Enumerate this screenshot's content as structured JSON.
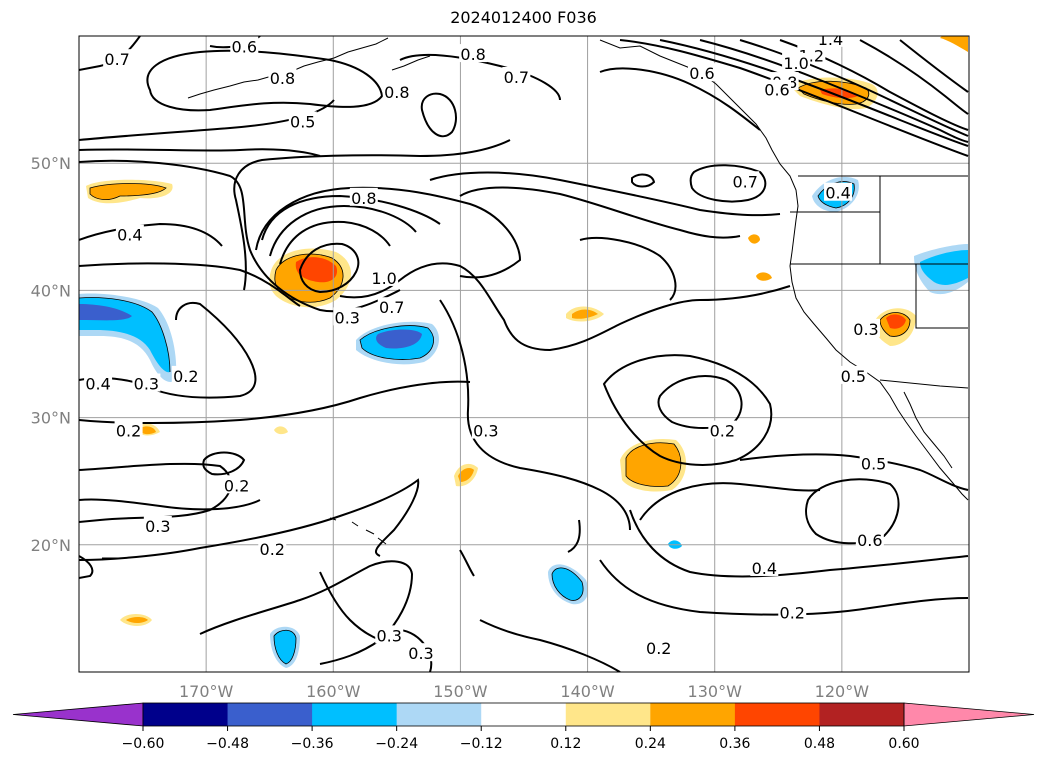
{
  "title": "2024012400 F036",
  "map": {
    "lat_labels": [
      "50°N",
      "40°N",
      "30°N",
      "20°N"
    ],
    "lat_values": [
      50,
      40,
      30,
      20
    ],
    "lon_labels": [
      "170°W",
      "160°W",
      "150°W",
      "140°W",
      "130°W",
      "120°W"
    ],
    "lon_values": [
      -170,
      -160,
      -150,
      -140,
      -130,
      -120
    ],
    "extent": {
      "lon": [
        -180,
        -110
      ],
      "lat": [
        10,
        60
      ]
    },
    "grid": true,
    "contour_labels": [
      {
        "text": "0.7",
        "lon": -177.0,
        "lat": 58.1
      },
      {
        "text": "0.6",
        "lon": -167.0,
        "lat": 59.1
      },
      {
        "text": "0.8",
        "lon": -164.0,
        "lat": 56.6
      },
      {
        "text": "0.8",
        "lon": -149.0,
        "lat": 58.5
      },
      {
        "text": "0.8",
        "lon": -155.0,
        "lat": 55.5
      },
      {
        "text": "0.7",
        "lon": -145.6,
        "lat": 56.7
      },
      {
        "text": "0.6",
        "lon": -131.0,
        "lat": 57.0
      },
      {
        "text": "0.5",
        "lon": -162.4,
        "lat": 53.2
      },
      {
        "text": "1.4",
        "lon": -120.9,
        "lat": 59.7
      },
      {
        "text": "1.2",
        "lon": -122.4,
        "lat": 58.4
      },
      {
        "text": "1.0",
        "lon": -123.6,
        "lat": 57.8
      },
      {
        "text": "0.8",
        "lon": -124.5,
        "lat": 56.3
      },
      {
        "text": "0.6",
        "lon": -125.1,
        "lat": 55.7
      },
      {
        "text": "0.7",
        "lon": -127.6,
        "lat": 48.5
      },
      {
        "text": "0.4",
        "lon": -120.3,
        "lat": 47.6
      },
      {
        "text": "0.4",
        "lon": -176.0,
        "lat": 44.3
      },
      {
        "text": "0.8",
        "lon": -157.6,
        "lat": 47.2
      },
      {
        "text": "1.0",
        "lon": -156.0,
        "lat": 40.9
      },
      {
        "text": "0.7",
        "lon": -155.4,
        "lat": 38.6
      },
      {
        "text": "0.3",
        "lon": -158.9,
        "lat": 37.8
      },
      {
        "text": "0.4",
        "lon": -178.5,
        "lat": 32.6
      },
      {
        "text": "0.3",
        "lon": -174.7,
        "lat": 32.6
      },
      {
        "text": "0.2",
        "lon": -171.6,
        "lat": 33.2
      },
      {
        "text": "0.2",
        "lon": -176.1,
        "lat": 28.9
      },
      {
        "text": "0.2",
        "lon": -167.6,
        "lat": 24.6
      },
      {
        "text": "0.3",
        "lon": -173.8,
        "lat": 21.4
      },
      {
        "text": "0.2",
        "lon": -164.8,
        "lat": 19.6
      },
      {
        "text": "0.3",
        "lon": -148.0,
        "lat": 28.9
      },
      {
        "text": "0.2",
        "lon": -129.4,
        "lat": 28.9
      },
      {
        "text": "0.5",
        "lon": -117.5,
        "lat": 26.3
      },
      {
        "text": "0.6",
        "lon": -117.8,
        "lat": 20.3
      },
      {
        "text": "0.4",
        "lon": -126.1,
        "lat": 18.1
      },
      {
        "text": "0.2",
        "lon": -123.9,
        "lat": 14.6
      },
      {
        "text": "0.3",
        "lon": -155.6,
        "lat": 12.8
      },
      {
        "text": "0.3",
        "lon": -153.1,
        "lat": 11.4
      },
      {
        "text": "0.2",
        "lon": -134.4,
        "lat": 11.8
      },
      {
        "text": "0.5",
        "lon": -119.1,
        "lat": 33.2
      },
      {
        "text": "0.3",
        "lon": -118.1,
        "lat": 36.9
      }
    ]
  },
  "colorbar": {
    "ticks": [
      "−0.60",
      "−0.48",
      "−0.36",
      "−0.24",
      "−0.12",
      "0.12",
      "0.24",
      "0.36",
      "0.48",
      "0.60"
    ],
    "colors": [
      "#9932cc",
      "#00008b",
      "#3a5fcd",
      "#00bfff",
      "#add8f5",
      "#ffffff",
      "#ffe68a",
      "#ffa500",
      "#ff4500",
      "#b22222",
      "#ff88aa"
    ]
  }
}
